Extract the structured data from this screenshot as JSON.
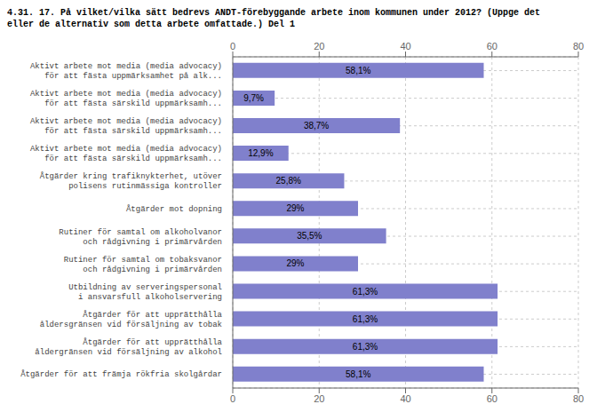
{
  "chart_data": {
    "type": "bar",
    "orientation": "horizontal",
    "title": "4.31. 17. På vilket/vilka sätt bedrevs ANDT-förebyggande arbete inom kommunen under 2012? (Uppge det\neller de alternativ som detta arbete omfattade.) Del 1",
    "categories": [
      "Aktivt arbete mot media (media advocacy)\nför att fästa uppmärksamhet på alk...",
      "Aktivt arbete mot media (media advocacy)\nför att fästa särskild uppmärksamh...",
      "Aktivt arbete mot media (media advocacy)\nför att fästa särskild uppmärksamh...",
      "Aktivt arbete mot media (media advocacy)\nför att fästa särskild uppmärksamh...",
      "Åtgärder kring trafiknykterhet, utöver\npolisens rutinmässiga kontroller",
      "Åtgärder mot dopning",
      "Rutiner för samtal om alkoholvanor\noch rådgivning i primärvården",
      "Rutiner för samtal om tobaksvanor\noch rådgivning i primärvården",
      "Utbildning av serveringspersonal\ni ansvarsfull alkoholservering",
      "Åtgärder för att upprätthålla\nåldersgränsen vid försäljning av tobak",
      "Åtgärder för att upprätthålla\nåldergränsen vid försäljning av alkohol",
      "Åtgärder för att främja rökfria skolgårdar"
    ],
    "values": [
      58.1,
      9.7,
      38.7,
      12.9,
      25.8,
      29.0,
      35.5,
      29.0,
      61.3,
      61.3,
      61.3,
      58.1
    ],
    "value_labels": [
      "58,1%",
      "9,7%",
      "38,7%",
      "12,9%",
      "25,8%",
      "29%",
      "35,5%",
      "29%",
      "61,3%",
      "61,3%",
      "61,3%",
      "58,1%"
    ],
    "data_labels": true,
    "color": "#8080cc",
    "xlim": [
      0,
      80
    ],
    "xticks": [
      0,
      20,
      40,
      60,
      80
    ],
    "grid": true
  }
}
